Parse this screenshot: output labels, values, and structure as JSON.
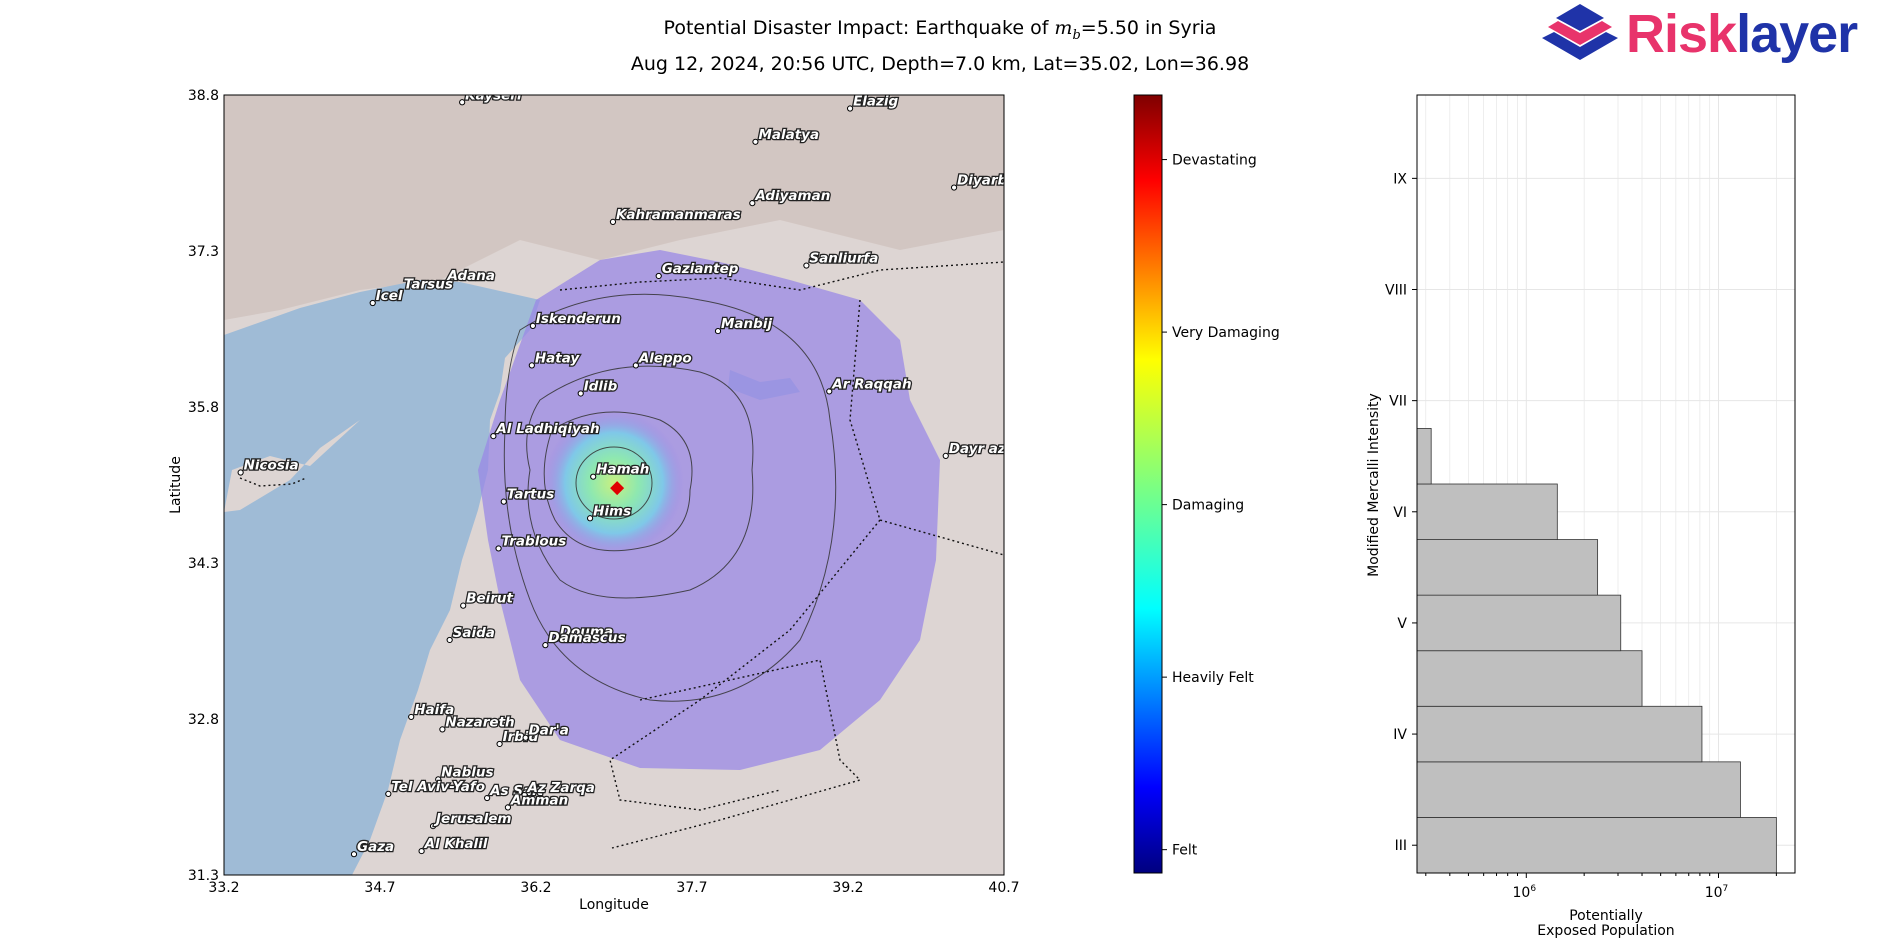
{
  "header": {
    "title_line1_prefix": "Potential Disaster Impact: Earthquake of ",
    "magnitude_symbol": "m",
    "magnitude_subscript": "b",
    "title_line1_suffix": "=5.50 in Syria",
    "title_line2": "Aug 12, 2024, 20:56 UTC, Depth=7.0 km, Lat=35.02, Lon=36.98"
  },
  "logo": {
    "text_part1": "Risk",
    "text_part2": "layer",
    "color_part1": "#e8336b",
    "color_part2": "#1f33a8"
  },
  "colors": {
    "water": "#9fbbd6",
    "land": "#ddd5d3",
    "shake": "#9a88e6",
    "epicenter": "#e00000",
    "bar": "#bfbfbf"
  },
  "chart_data": [
    {
      "type": "map",
      "xlabel": "Longitude",
      "ylabel": "Latitude",
      "xlim": [
        33.2,
        40.7
      ],
      "ylim": [
        31.3,
        38.8
      ],
      "xticks": [
        "33.2",
        "34.7",
        "36.2",
        "37.7",
        "39.2",
        "40.7"
      ],
      "yticks": [
        "31.3",
        "32.8",
        "34.3",
        "35.8",
        "37.3",
        "38.8"
      ],
      "epicenter": {
        "lon": 36.98,
        "lat": 35.02
      },
      "cities": [
        {
          "name": "Kayseri",
          "lon": 35.49,
          "lat": 38.73
        },
        {
          "name": "Elazig",
          "lon": 39.22,
          "lat": 38.67
        },
        {
          "name": "Malatya",
          "lon": 38.31,
          "lat": 38.35
        },
        {
          "name": "Diyarbakir",
          "lon": 40.22,
          "lat": 37.91
        },
        {
          "name": "Adiyaman",
          "lon": 38.28,
          "lat": 37.76
        },
        {
          "name": "Kahramanmaras",
          "lon": 36.94,
          "lat": 37.58
        },
        {
          "name": "Gaziantep",
          "lon": 37.38,
          "lat": 37.06
        },
        {
          "name": "Sanliurfa",
          "lon": 38.8,
          "lat": 37.16
        },
        {
          "name": "Adana",
          "lon": 35.32,
          "lat": 36.99
        },
        {
          "name": "Tarsus",
          "lon": 34.9,
          "lat": 36.91
        },
        {
          "name": "Icel",
          "lon": 34.63,
          "lat": 36.8
        },
        {
          "name": "Iskenderun",
          "lon": 36.17,
          "lat": 36.58
        },
        {
          "name": "Manbij",
          "lon": 37.95,
          "lat": 36.53
        },
        {
          "name": "Hatay",
          "lon": 36.16,
          "lat": 36.2
        },
        {
          "name": "Aleppo",
          "lon": 37.16,
          "lat": 36.2
        },
        {
          "name": "Idlib",
          "lon": 36.63,
          "lat": 35.93
        },
        {
          "name": "Ar Raqqah",
          "lon": 39.02,
          "lat": 35.95
        },
        {
          "name": "Al Ladhiqiyah",
          "lon": 35.79,
          "lat": 35.52
        },
        {
          "name": "Dayr az Zawr",
          "lon": 40.14,
          "lat": 35.33
        },
        {
          "name": "Nicosia",
          "lon": 33.36,
          "lat": 35.17
        },
        {
          "name": "Hamah",
          "lon": 36.75,
          "lat": 35.13
        },
        {
          "name": "Tartus",
          "lon": 35.89,
          "lat": 34.89
        },
        {
          "name": "Hims",
          "lon": 36.72,
          "lat": 34.73
        },
        {
          "name": "Trablous",
          "lon": 35.84,
          "lat": 34.44
        },
        {
          "name": "Beirut",
          "lon": 35.5,
          "lat": 33.89
        },
        {
          "name": "Saida",
          "lon": 35.37,
          "lat": 33.56
        },
        {
          "name": "Douma",
          "lon": 36.4,
          "lat": 33.57
        },
        {
          "name": "Damascus",
          "lon": 36.29,
          "lat": 33.51
        },
        {
          "name": "Haifa",
          "lon": 35.0,
          "lat": 32.82
        },
        {
          "name": "Nazareth",
          "lon": 35.3,
          "lat": 32.7
        },
        {
          "name": "Irbid",
          "lon": 35.85,
          "lat": 32.56
        },
        {
          "name": "Dar'a",
          "lon": 36.1,
          "lat": 32.62
        },
        {
          "name": "Nablus",
          "lon": 35.26,
          "lat": 32.22
        },
        {
          "name": "Tel Aviv-Yafo",
          "lon": 34.78,
          "lat": 32.08
        },
        {
          "name": "As Salt",
          "lon": 35.73,
          "lat": 32.04
        },
        {
          "name": "Az Zarqa",
          "lon": 36.09,
          "lat": 32.07
        },
        {
          "name": "Amman",
          "lon": 35.93,
          "lat": 31.95
        },
        {
          "name": "Jerusalem",
          "lon": 35.21,
          "lat": 31.77
        },
        {
          "name": "Gaza",
          "lon": 34.45,
          "lat": 31.5
        },
        {
          "name": "Al Khalil",
          "lon": 35.1,
          "lat": 31.53
        }
      ]
    },
    {
      "type": "colorbar",
      "levels": [
        "Felt",
        "Heavily Felt",
        "Damaging",
        "Very Damaging",
        "Devastating"
      ]
    },
    {
      "type": "bar",
      "orientation": "horizontal",
      "xscale": "log",
      "xlim": [
        270000,
        25000000
      ],
      "xlabel_line1": "Potentially",
      "xlabel_line2": "Exposed Population",
      "ylabel": "Modified Mercalli Intensity",
      "ylim": [
        2.75,
        9.75
      ],
      "xtick_labels": [
        {
          "base": "10",
          "exp": "6",
          "value": 1000000
        },
        {
          "base": "10",
          "exp": "7",
          "value": 10000000
        }
      ],
      "yticks": [
        "III",
        "IV",
        "V",
        "VI",
        "VII",
        "VIII",
        "IX"
      ],
      "bars": [
        {
          "mmi": 3.0,
          "value": 20000000
        },
        {
          "mmi": 3.5,
          "value": 13000000
        },
        {
          "mmi": 4.0,
          "value": 8200000
        },
        {
          "mmi": 4.5,
          "value": 4000000
        },
        {
          "mmi": 5.0,
          "value": 3100000
        },
        {
          "mmi": 5.5,
          "value": 2350000
        },
        {
          "mmi": 6.0,
          "value": 1450000
        },
        {
          "mmi": 6.5,
          "value": 320000
        }
      ]
    }
  ]
}
